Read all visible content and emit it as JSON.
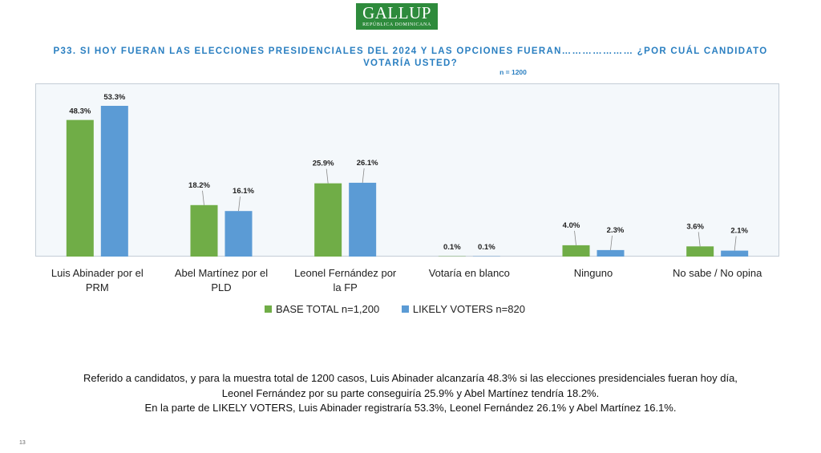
{
  "logo": {
    "brand": "GALLUP",
    "sub": "REPÚBLICA DOMINICANA"
  },
  "question": {
    "line1": "P33.  SI HOY FUERAN LAS ELECCIONES PRESIDENCIALES DEL 2024 Y LAS OPCIONES FUERAN………………… ¿POR CUÁL CANDIDATO",
    "line2": "VOTARÍA USTED?",
    "n_label": "n = 1200"
  },
  "colors": {
    "base_total": "#70ad47",
    "likely_voters": "#5b9bd5"
  },
  "chart_data": {
    "type": "bar",
    "categories": [
      [
        "Luis Abinader por el",
        "PRM"
      ],
      [
        "Abel Martínez por el",
        "PLD"
      ],
      [
        "Leonel Fernández por",
        "la FP"
      ],
      [
        "Votaría en blanco"
      ],
      [
        "Ninguno"
      ],
      [
        "No sabe / No opina"
      ]
    ],
    "series": [
      {
        "name": "BASE TOTAL n=1,200",
        "values": [
          48.3,
          18.2,
          25.9,
          0.1,
          4.0,
          3.6
        ],
        "labels": [
          "48.3%",
          "18.2%",
          "25.9%",
          "0.1%",
          "4.0%",
          "3.6%"
        ]
      },
      {
        "name": "LIKELY VOTERS n=820",
        "values": [
          53.3,
          16.1,
          26.1,
          0.1,
          2.3,
          2.1
        ],
        "labels": [
          "53.3%",
          "16.1%",
          "26.1%",
          "0.1%",
          "2.3%",
          "2.1%"
        ]
      }
    ],
    "ylim": [
      0,
      60
    ],
    "grid": false,
    "legend_position": "bottom"
  },
  "summary": {
    "line1": "Referido a candidatos, y para la muestra total de 1200 casos, Luis Abinader alcanzaría 48.3% si las elecciones presidenciales fueran hoy día,",
    "line2": "Leonel Fernández por su parte conseguiría 25.9% y Abel Martínez tendría 18.2%.",
    "line3": "En la parte de LIKELY VOTERS, Luis Abinader registraría 53.3%, Leonel Fernández 26.1% y Abel Martínez 16.1%."
  },
  "page_number": "13"
}
